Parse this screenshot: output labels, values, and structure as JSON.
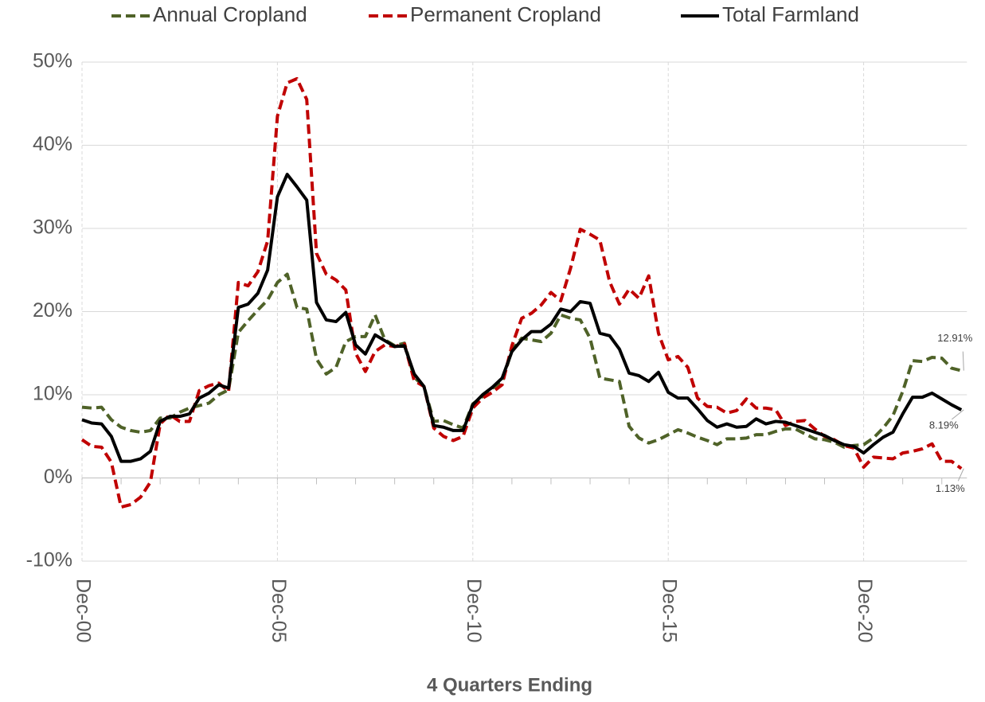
{
  "chart_data": {
    "type": "line",
    "x_title": "4 Quarters Ending",
    "categories": [
      "Dec-00",
      null,
      null,
      null,
      null,
      null,
      null,
      null,
      null,
      null,
      null,
      null,
      null,
      null,
      null,
      null,
      null,
      null,
      null,
      null,
      "Dec-05",
      null,
      null,
      null,
      null,
      null,
      null,
      null,
      null,
      null,
      null,
      null,
      null,
      null,
      null,
      null,
      null,
      null,
      null,
      null,
      "Dec-10",
      null,
      null,
      null,
      null,
      null,
      null,
      null,
      null,
      null,
      null,
      null,
      null,
      null,
      null,
      null,
      null,
      null,
      null,
      null,
      "Dec-15",
      null,
      null,
      null,
      null,
      null,
      null,
      null,
      null,
      null,
      null,
      null,
      null,
      null,
      null,
      null,
      null,
      null,
      null,
      null,
      "Dec-20",
      null,
      null,
      null,
      null,
      null,
      null,
      null,
      null,
      null,
      null
    ],
    "ylim": [
      -10,
      50
    ],
    "yticks": [
      {
        "value": -10,
        "label": "-10%"
      },
      {
        "value": 0,
        "label": "0%"
      },
      {
        "value": 10,
        "label": "10%"
      },
      {
        "value": 20,
        "label": "20%"
      },
      {
        "value": 30,
        "label": "30%"
      },
      {
        "value": 40,
        "label": "40%"
      },
      {
        "value": 50,
        "label": "50%"
      }
    ],
    "grid": true,
    "legend": "top",
    "series": [
      {
        "name": "Annual Cropland",
        "color": "#4f6228",
        "dash": true,
        "values": [
          8.5,
          8.4,
          8.5,
          7.0,
          6.1,
          5.7,
          5.5,
          5.7,
          7.2,
          7.2,
          7.9,
          8.4,
          8.7,
          9.0,
          10.0,
          10.6,
          17.5,
          18.9,
          20.2,
          21.4,
          23.5,
          24.5,
          20.5,
          20.3,
          14.3,
          12.5,
          13.3,
          16.4,
          17.0,
          17.0,
          19.6,
          16.6,
          15.9,
          16.2,
          12.1,
          11.0,
          6.8,
          6.9,
          6.4,
          6.0,
          8.9,
          9.8,
          10.8,
          11.5,
          15.4,
          16.8,
          16.6,
          16.4,
          17.4,
          19.6,
          19.2,
          19.0,
          16.8,
          12.0,
          11.8,
          11.6,
          6.2,
          4.8,
          4.2,
          4.6,
          5.2,
          5.8,
          5.4,
          4.9,
          4.5,
          4.0,
          4.7,
          4.7,
          4.8,
          5.2,
          5.2,
          5.6,
          5.9,
          5.9,
          5.3,
          4.7,
          4.6,
          4.3,
          3.7,
          3.9,
          4.0,
          4.8,
          6.0,
          7.5,
          10.4,
          14.1,
          14.0,
          14.5,
          14.4,
          13.2,
          12.91
        ],
        "value_labels": [
          null,
          null,
          null,
          null,
          null,
          null,
          null,
          null,
          null,
          null,
          null,
          null,
          null,
          null,
          null,
          null,
          null,
          null,
          null,
          null,
          null,
          null,
          null,
          null,
          null,
          null,
          null,
          null,
          null,
          null,
          null,
          null,
          null,
          null,
          null,
          null,
          null,
          null,
          null,
          null,
          null,
          null,
          null,
          null,
          null,
          null,
          null,
          null,
          null,
          null,
          null,
          null,
          null,
          null,
          null,
          null,
          null,
          null,
          null,
          null,
          null,
          null,
          null,
          null,
          null,
          null,
          null,
          null,
          null,
          null,
          null,
          null,
          null,
          null,
          null,
          null,
          null,
          null,
          null,
          null,
          null,
          null,
          null,
          null,
          null,
          null,
          null,
          null,
          null,
          null,
          "12.91%"
        ]
      },
      {
        "name": "Permanent Cropland",
        "color": "#c00000",
        "dash": true,
        "values": [
          4.6,
          3.8,
          3.7,
          1.9,
          -3.5,
          -3.2,
          -2.3,
          -0.5,
          6.5,
          7.6,
          6.8,
          6.8,
          10.5,
          11.1,
          11.4,
          10.4,
          23.5,
          23.1,
          24.8,
          28.5,
          43.5,
          47.5,
          48.0,
          45.5,
          27.0,
          24.5,
          23.8,
          22.6,
          15.0,
          12.8,
          15.2,
          16.0,
          15.8,
          16.1,
          11.7,
          11.0,
          6.0,
          5.0,
          4.5,
          5.0,
          8.4,
          9.6,
          10.3,
          11.2,
          15.9,
          19.2,
          19.8,
          20.8,
          22.3,
          21.3,
          25.2,
          29.9,
          29.3,
          28.6,
          23.6,
          20.9,
          22.7,
          21.6,
          24.3,
          17.4,
          14.2,
          14.6,
          13.3,
          9.6,
          8.6,
          8.5,
          7.8,
          8.1,
          9.5,
          8.4,
          8.4,
          8.2,
          6.3,
          6.8,
          6.9,
          5.9,
          5.0,
          4.6,
          3.9,
          3.6,
          1.3,
          2.5,
          2.4,
          2.3,
          3.0,
          3.2,
          3.5,
          4.1,
          2.0,
          2.0,
          1.13
        ],
        "value_labels": [
          null,
          null,
          null,
          null,
          null,
          null,
          null,
          null,
          null,
          null,
          null,
          null,
          null,
          null,
          null,
          null,
          null,
          null,
          null,
          null,
          null,
          null,
          null,
          null,
          null,
          null,
          null,
          null,
          null,
          null,
          null,
          null,
          null,
          null,
          null,
          null,
          null,
          null,
          null,
          null,
          null,
          null,
          null,
          null,
          null,
          null,
          null,
          null,
          null,
          null,
          null,
          null,
          null,
          null,
          null,
          null,
          null,
          null,
          null,
          null,
          null,
          null,
          null,
          null,
          null,
          null,
          null,
          null,
          null,
          null,
          null,
          null,
          null,
          null,
          null,
          null,
          null,
          null,
          null,
          null,
          null,
          null,
          null,
          null,
          null,
          null,
          null,
          null,
          null,
          null,
          "1.13%"
        ]
      },
      {
        "name": "Total Farmland",
        "color": "#000000",
        "dash": false,
        "values": [
          7.0,
          6.6,
          6.5,
          5.0,
          2.0,
          2.0,
          2.3,
          3.2,
          6.8,
          7.4,
          7.4,
          7.7,
          9.6,
          10.2,
          11.2,
          10.8,
          20.5,
          20.9,
          22.2,
          25.0,
          33.8,
          36.5,
          35.0,
          33.4,
          21.1,
          19.0,
          18.8,
          19.9,
          16.0,
          14.9,
          17.2,
          16.5,
          15.8,
          15.9,
          12.5,
          11.0,
          6.3,
          6.1,
          5.7,
          5.7,
          8.8,
          10.0,
          10.9,
          12.0,
          15.2,
          16.6,
          17.6,
          17.6,
          18.5,
          20.3,
          20.0,
          21.2,
          21.0,
          17.4,
          17.1,
          15.5,
          12.6,
          12.3,
          11.6,
          12.7,
          10.3,
          9.6,
          9.6,
          8.3,
          6.9,
          6.1,
          6.5,
          6.1,
          6.2,
          7.1,
          6.5,
          6.8,
          6.7,
          6.3,
          5.9,
          5.5,
          5.1,
          4.5,
          4.0,
          3.8,
          3.0,
          4.0,
          4.9,
          5.5,
          7.7,
          9.7,
          9.7,
          10.2,
          9.5,
          8.8,
          8.19
        ],
        "value_labels": [
          null,
          null,
          null,
          null,
          null,
          null,
          null,
          null,
          null,
          null,
          null,
          null,
          null,
          null,
          null,
          null,
          null,
          null,
          null,
          null,
          null,
          null,
          null,
          null,
          null,
          null,
          null,
          null,
          null,
          null,
          null,
          null,
          null,
          null,
          null,
          null,
          null,
          null,
          null,
          null,
          null,
          null,
          null,
          null,
          null,
          null,
          null,
          null,
          null,
          null,
          null,
          null,
          null,
          null,
          null,
          null,
          null,
          null,
          null,
          null,
          null,
          null,
          null,
          null,
          null,
          null,
          null,
          null,
          null,
          null,
          null,
          null,
          null,
          null,
          null,
          null,
          null,
          null,
          null,
          null,
          null,
          null,
          null,
          null,
          null,
          null,
          null,
          null,
          null,
          null,
          "8.19%"
        ]
      }
    ]
  }
}
